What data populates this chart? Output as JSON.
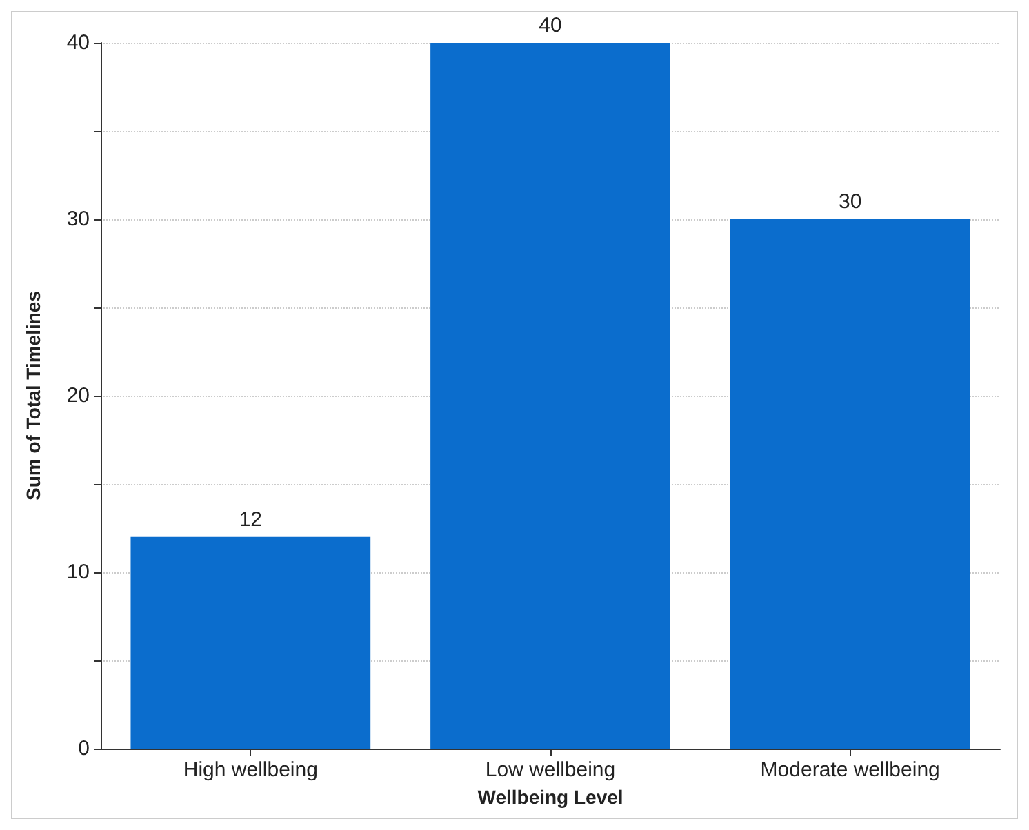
{
  "chart_data": {
    "type": "bar",
    "xlabel": "Wellbeing Level",
    "ylabel": "Sum of Total Timelines",
    "categories": [
      "High wellbeing",
      "Low wellbeing",
      "Moderate wellbeing"
    ],
    "values": [
      12,
      40,
      30
    ],
    "color": "#0b6dcd",
    "ylim": [
      0,
      40
    ],
    "yticks": [
      0,
      {
        "value": 5,
        "label": null
      },
      10,
      {
        "value": 15,
        "label": null
      },
      20,
      {
        "value": 25,
        "label": null
      },
      30,
      {
        "value": 35,
        "label": null
      },
      40
    ],
    "grid": "y",
    "data_labels": true
  }
}
